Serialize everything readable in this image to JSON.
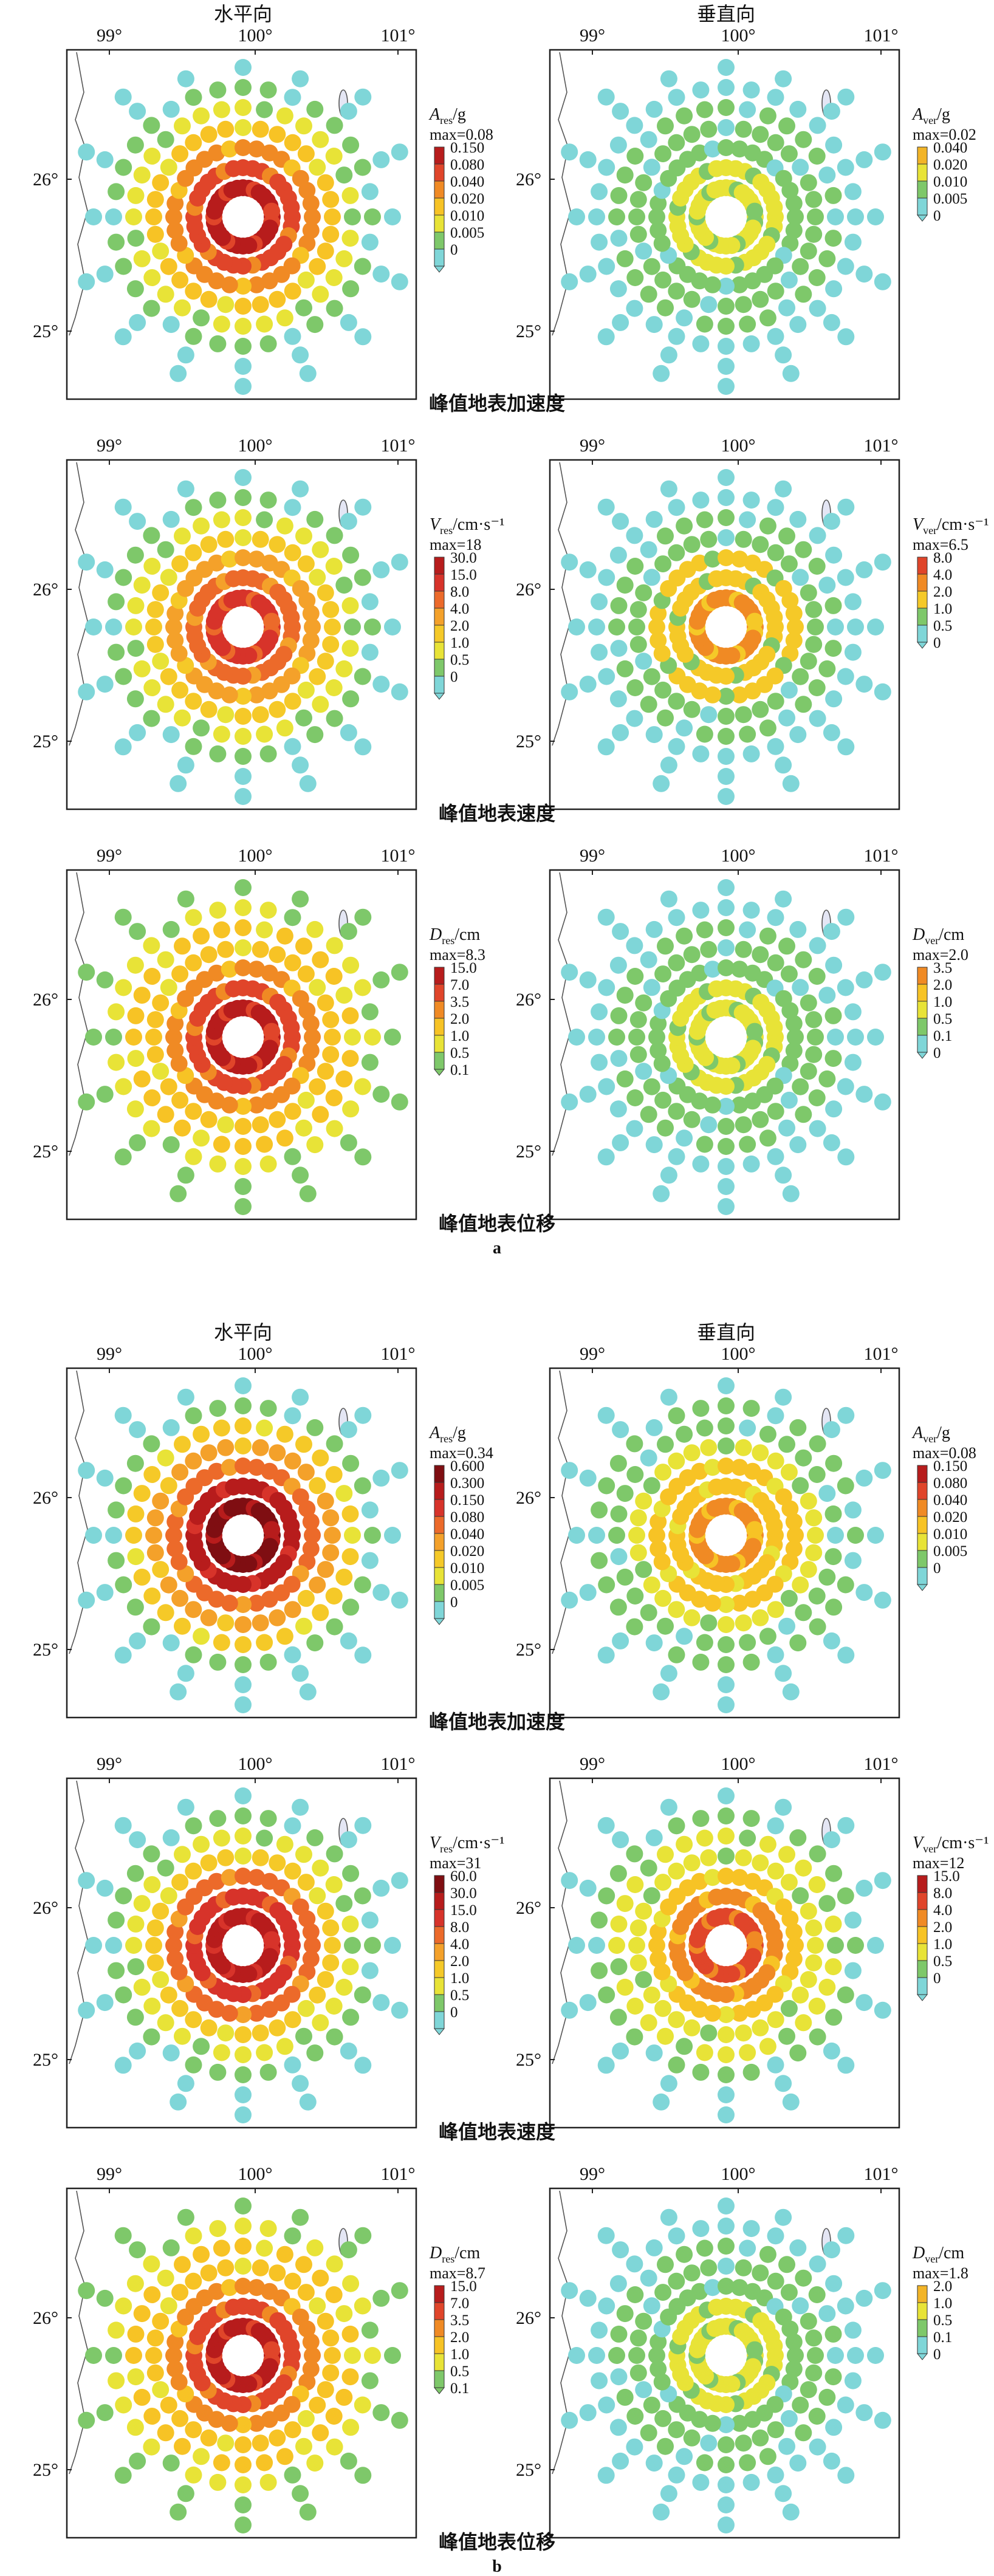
{
  "figure": {
    "parts": [
      {
        "label": "a",
        "column_titles": [
          "水平向",
          "垂直向"
        ],
        "rows": [
          {
            "caption": "峰值地表加速度",
            "maps": [
              {
                "var": "A",
                "sub": "res",
                "unit": "/g",
                "max": "max=0.08",
                "levels": [
                  "0.150",
                  "0.080",
                  "0.040",
                  "0.020",
                  "0.010",
                  "0.005",
                  "0"
                ],
                "colors": [
                  "#b71c1c",
                  "#e0452a",
                  "#f08a24",
                  "#f7c325",
                  "#e8e337",
                  "#7ec86a",
                  "#7fd6d8"
                ],
                "peak": 6
              },
              {
                "var": "A",
                "sub": "ver",
                "unit": "/g",
                "max": "max=0.02",
                "levels": [
                  "0.040",
                  "0.020",
                  "0.010",
                  "0.005",
                  "0"
                ],
                "colors": [
                  "#f2b427",
                  "#e8e337",
                  "#7ec86a",
                  "#7fd6d8"
                ],
                "peak": 2
              }
            ]
          },
          {
            "caption": "峰值地表速度",
            "maps": [
              {
                "var": "V",
                "sub": "res",
                "unit": "/cm·s⁻¹",
                "max": "max=18",
                "levels": [
                  "30.0",
                  "15.0",
                  "8.0",
                  "4.0",
                  "2.0",
                  "1.0",
                  "0.5",
                  "0"
                ],
                "colors": [
                  "#b71c1c",
                  "#d7332a",
                  "#ec6a2a",
                  "#f4a12a",
                  "#f5c928",
                  "#e8e337",
                  "#7ec86a",
                  "#7fd6d8"
                ],
                "peak": 6
              },
              {
                "var": "V",
                "sub": "ver",
                "unit": "/cm·s⁻¹",
                "max": "max=6.5",
                "levels": [
                  "8.0",
                  "4.0",
                  "2.0",
                  "1.0",
                  "0.5",
                  "0"
                ],
                "colors": [
                  "#e0452a",
                  "#f08a24",
                  "#f5c928",
                  "#7ec86a",
                  "#7fd6d8"
                ],
                "peak": 3
              }
            ]
          },
          {
            "caption": "峰值地表位移",
            "maps": [
              {
                "var": "D",
                "sub": "res",
                "unit": "/cm",
                "max": "max=8.3",
                "levels": [
                  "15.0",
                  "7.0",
                  "3.5",
                  "2.0",
                  "1.0",
                  "0.5",
                  "0.1"
                ],
                "colors": [
                  "#b71c1c",
                  "#e0452a",
                  "#f08a24",
                  "#f7c325",
                  "#e8e337",
                  "#7ec86a"
                ],
                "peak": 5
              },
              {
                "var": "D",
                "sub": "ver",
                "unit": "/cm",
                "max": "max=2.0",
                "levels": [
                  "3.5",
                  "2.0",
                  "1.0",
                  "0.5",
                  "0.1",
                  "0"
                ],
                "colors": [
                  "#f08a24",
                  "#f7c325",
                  "#e8e337",
                  "#7ec86a",
                  "#7fd6d8"
                ],
                "peak": 2
              }
            ]
          }
        ]
      },
      {
        "label": "b",
        "column_titles": [
          "水平向",
          "垂直向"
        ],
        "rows": [
          {
            "caption": "峰值地表加速度",
            "maps": [
              {
                "var": "A",
                "sub": "res",
                "unit": "/g",
                "max": "max=0.34",
                "levels": [
                  "0.600",
                  "0.300",
                  "0.150",
                  "0.080",
                  "0.040",
                  "0.020",
                  "0.010",
                  "0.005",
                  "0"
                ],
                "colors": [
                  "#7f0e12",
                  "#b71c1c",
                  "#d7332a",
                  "#ec6a2a",
                  "#f4a12a",
                  "#f5c928",
                  "#e8e337",
                  "#7ec86a",
                  "#7fd6d8"
                ],
                "peak": 8
              },
              {
                "var": "A",
                "sub": "ver",
                "unit": "/g",
                "max": "max=0.08",
                "levels": [
                  "0.150",
                  "0.080",
                  "0.040",
                  "0.020",
                  "0.010",
                  "0.005",
                  "0"
                ],
                "colors": [
                  "#b71c1c",
                  "#e0452a",
                  "#f08a24",
                  "#f7c325",
                  "#e8e337",
                  "#7ec86a",
                  "#7fd6d8"
                ],
                "peak": 4
              }
            ]
          },
          {
            "caption": "峰值地表速度",
            "maps": [
              {
                "var": "V",
                "sub": "res",
                "unit": "/cm·s⁻¹",
                "max": "max=31",
                "levels": [
                  "60.0",
                  "30.0",
                  "15.0",
                  "8.0",
                  "4.0",
                  "2.0",
                  "1.0",
                  "0.5",
                  "0"
                ],
                "colors": [
                  "#7f0e12",
                  "#b71c1c",
                  "#d7332a",
                  "#ec6a2a",
                  "#f4a12a",
                  "#f5c928",
                  "#e8e337",
                  "#7ec86a",
                  "#7fd6d8"
                ],
                "peak": 7
              },
              {
                "var": "V",
                "sub": "ver",
                "unit": "/cm·s⁻¹",
                "max": "max=12",
                "levels": [
                  "15.0",
                  "8.0",
                  "4.0",
                  "2.0",
                  "1.0",
                  "0.5",
                  "0"
                ],
                "colors": [
                  "#b71c1c",
                  "#e0452a",
                  "#f08a24",
                  "#f7c325",
                  "#e8e337",
                  "#7ec86a",
                  "#7fd6d8"
                ],
                "peak": 5
              }
            ]
          },
          {
            "caption": "峰值地表位移",
            "maps": [
              {
                "var": "D",
                "sub": "res",
                "unit": "/cm",
                "max": "max=8.7",
                "levels": [
                  "15.0",
                  "7.0",
                  "3.5",
                  "2.0",
                  "1.0",
                  "0.5",
                  "0.1"
                ],
                "colors": [
                  "#b71c1c",
                  "#e0452a",
                  "#f08a24",
                  "#f7c325",
                  "#e8e337",
                  "#7ec86a"
                ],
                "peak": 5
              },
              {
                "var": "D",
                "sub": "ver",
                "unit": "/cm",
                "max": "max=1.8",
                "levels": [
                  "2.0",
                  "1.0",
                  "0.5",
                  "0.1",
                  "0"
                ],
                "colors": [
                  "#f2b427",
                  "#e8e337",
                  "#7ec86a",
                  "#7fd6d8"
                ],
                "peak": 2
              }
            ]
          }
        ]
      }
    ],
    "lon_ticks": [
      "99°",
      "100°",
      "101°"
    ],
    "lat_ticks": [
      "26°",
      "25°"
    ]
  }
}
